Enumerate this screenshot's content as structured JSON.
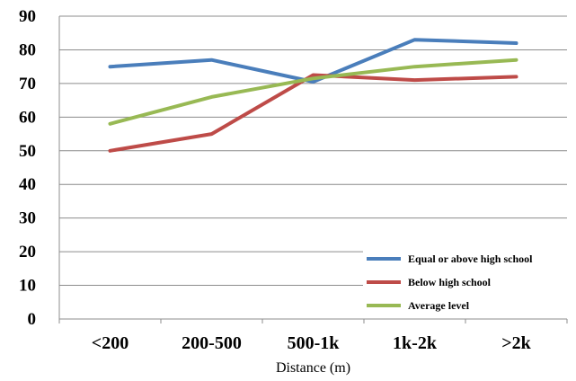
{
  "chart_data": {
    "type": "line",
    "categories": [
      "<200",
      "200-500",
      "500-1k",
      "1k-2k",
      ">2k"
    ],
    "series": [
      {
        "name": "Equal or above high school",
        "values": [
          75,
          77,
          70.5,
          83,
          82
        ],
        "color": "#4a7ebb"
      },
      {
        "name": "Below high school",
        "values": [
          50,
          55,
          72.5,
          71,
          72
        ],
        "color": "#be4b48"
      },
      {
        "name": "Average level",
        "values": [
          58,
          66,
          71.5,
          75,
          77
        ],
        "color": "#98b954"
      }
    ],
    "title": "",
    "xlabel": "Distance (m)",
    "ylabel": "",
    "ylim": [
      0,
      90
    ],
    "yticks": [
      0,
      10,
      20,
      30,
      40,
      50,
      60,
      70,
      80,
      90
    ],
    "grid": true,
    "legend_placement": "bottom-right"
  }
}
